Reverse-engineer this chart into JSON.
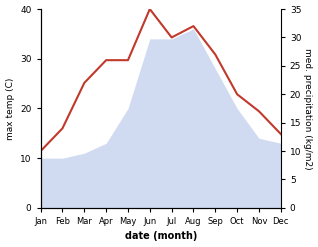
{
  "months": [
    "Jan",
    "Feb",
    "Mar",
    "Apr",
    "May",
    "Jun",
    "Jul",
    "Aug",
    "Sep",
    "Oct",
    "Nov",
    "Dec"
  ],
  "temp": [
    10,
    10,
    11,
    13,
    20,
    34,
    34,
    36,
    28,
    20,
    14,
    13
  ],
  "precip": [
    10,
    14,
    22,
    26,
    26,
    35,
    30,
    32,
    27,
    20,
    17,
    13
  ],
  "temp_color": "#b8c9ea",
  "precip_color": "#c0392b",
  "left_ylabel": "max temp (C)",
  "right_ylabel": "med. precipitation (kg/m2)",
  "xlabel": "date (month)",
  "ylim_left": [
    0,
    40
  ],
  "ylim_right": [
    0,
    35
  ],
  "yticks_left": [
    0,
    10,
    20,
    30,
    40
  ],
  "yticks_right": [
    0,
    5,
    10,
    15,
    20,
    25,
    30,
    35
  ],
  "bg_color": "#ffffff",
  "fill_alpha": 0.65
}
